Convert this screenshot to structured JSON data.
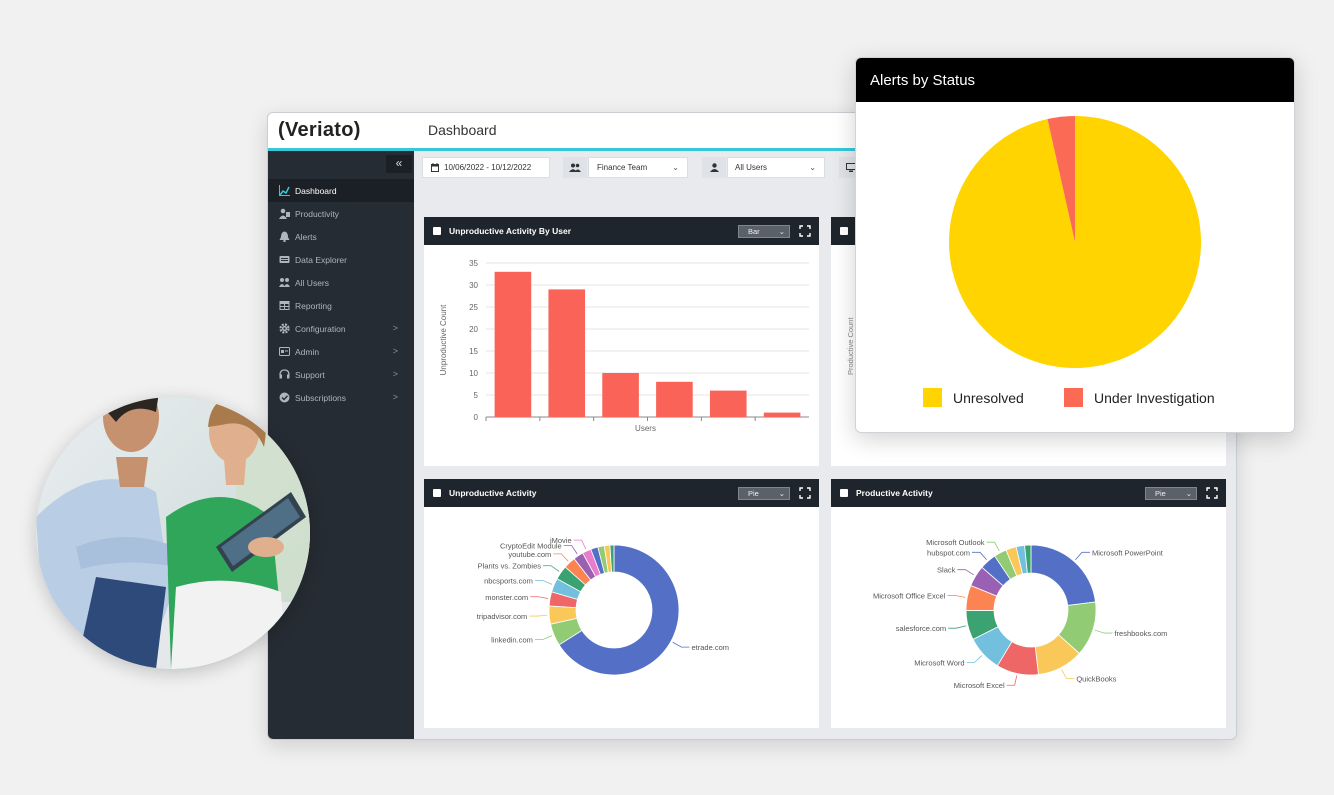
{
  "app": {
    "logo": "(Veriato)",
    "page_title": "Dashboard",
    "collapse_icon": "«"
  },
  "sidebar": {
    "items": [
      {
        "label": "Dashboard",
        "icon": "chart-line-icon",
        "active": true
      },
      {
        "label": "Productivity",
        "icon": "users-icon"
      },
      {
        "label": "Alerts",
        "icon": "bell-icon"
      },
      {
        "label": "Data Explorer",
        "icon": "keyboard-icon"
      },
      {
        "label": "All Users",
        "icon": "user-group-icon"
      },
      {
        "label": "Reporting",
        "icon": "table-icon"
      },
      {
        "label": "Configuration",
        "icon": "gear-icon",
        "chevron": ">"
      },
      {
        "label": "Admin",
        "icon": "admin-icon",
        "chevron": ">"
      },
      {
        "label": "Support",
        "icon": "support-icon",
        "chevron": ">"
      },
      {
        "label": "Subscriptions",
        "icon": "check-circle-icon",
        "chevron": ">"
      }
    ]
  },
  "filters": {
    "date_range": "10/06/2022 - 10/12/2022",
    "team": "Finance Team",
    "users": "All Users",
    "chevron": "⌄"
  },
  "panels": {
    "unproductive_by_user": {
      "title": "Unproductive Activity By User",
      "select": "Bar",
      "chevron": "⌄"
    },
    "unproductive_activity": {
      "title": "Unproductive Activity",
      "select": "Pie",
      "chevron": "⌄"
    },
    "productive_activity": {
      "title": "Productive Activity",
      "select": "Pie",
      "chevron": "⌄"
    },
    "partial_right_ylabel": "Productive Count"
  },
  "alerts_by_status": {
    "title": "Alerts by Status",
    "legend": [
      {
        "label": "Unresolved",
        "color": "#ffd400"
      },
      {
        "label": "Under Investigation",
        "color": "#fa6a55"
      }
    ]
  },
  "chart_data": [
    {
      "type": "bar",
      "title": "Unproductive Activity By User",
      "xlabel": "Users",
      "ylabel": "Unproductive Count",
      "ylim": [
        0,
        35
      ],
      "yticks": [
        0,
        5,
        10,
        15,
        20,
        25,
        30,
        35
      ],
      "categories": [
        "",
        "",
        "",
        "",
        "",
        ""
      ],
      "values": [
        33,
        29,
        10,
        8,
        6,
        1
      ],
      "color": "#fa6358",
      "grid": true
    },
    {
      "type": "pie",
      "title": "Unproductive Activity",
      "donut": true,
      "labels": [
        "etrade.com",
        "linkedin.com",
        "tripadvisor.com",
        "monster.com",
        "nbcsports.com",
        "Plants vs. Zombies",
        "youtube.com",
        "CryptoEdit Module",
        "iMovie",
        "",
        "",
        "",
        ""
      ],
      "values": [
        66,
        5.5,
        4.5,
        3.5,
        3.5,
        3.5,
        3,
        2.5,
        2.2,
        1.8,
        1.6,
        1.4,
        1
      ],
      "colors": [
        "#5470c6",
        "#91cc75",
        "#fac858",
        "#ee6666",
        "#73c0de",
        "#3ba272",
        "#fc8452",
        "#9a60b4",
        "#ea7ccc",
        "#5470c6",
        "#91cc75",
        "#fac858",
        "#3ba272"
      ]
    },
    {
      "type": "pie",
      "title": "Productive Activity",
      "donut": true,
      "labels": [
        "Microsoft PowerPoint",
        "freshbooks.com",
        "QuickBooks",
        "Microsoft Excel",
        "Microsoft Word",
        "salesforce.com",
        "Microsoft Office Excel",
        "Slack",
        "hubspot.com",
        "Microsoft Outlook",
        "",
        "",
        ""
      ],
      "values": [
        22,
        13,
        11,
        10,
        8.5,
        7,
        6,
        5,
        4,
        3,
        2.5,
        2,
        1.5
      ],
      "colors": [
        "#5470c6",
        "#91cc75",
        "#fac858",
        "#ee6666",
        "#73c0de",
        "#3ba272",
        "#fc8452",
        "#9a60b4",
        "#5470c6",
        "#91cc75",
        "#fac858",
        "#73c0de",
        "#3ba272"
      ]
    },
    {
      "type": "pie",
      "title": "Alerts by Status",
      "labels": [
        "Unresolved",
        "Under Investigation"
      ],
      "values": [
        96.5,
        3.5
      ],
      "colors": [
        "#ffd400",
        "#fa6a55"
      ],
      "legend": "bottom"
    }
  ]
}
